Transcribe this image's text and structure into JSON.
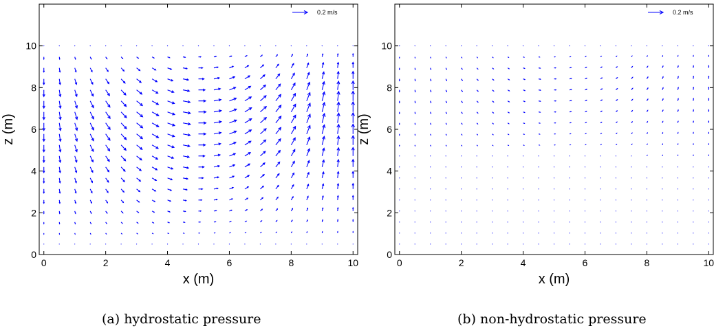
{
  "chart_data": [
    {
      "type": "quiver",
      "caption": "(a) hydrostatic pressure",
      "xlabel": "x (m)",
      "ylabel": "z (m)",
      "xlim": [
        -0.15,
        10.15
      ],
      "ylim": [
        0,
        12
      ],
      "xticks": [
        "0",
        "2",
        "4",
        "6",
        "8",
        "10"
      ],
      "yticks": [
        "0",
        "2",
        "4",
        "6",
        "8",
        "10"
      ],
      "reference_arrow": {
        "label": "0.2 m/s",
        "magnitude": 0.2,
        "position": "top-right"
      },
      "vector_color": "#0000ff",
      "field": {
        "nx": 21,
        "nz": 19,
        "x_range": [
          0,
          10
        ],
        "z_range": [
          0.5,
          10
        ],
        "max_speed": 0.27,
        "surface_speed_hint": 0.24,
        "decay_depth_m": 6.0,
        "pattern": "wind-driven circulation cell: downwelling at left wall, eastward surface flow, upwelling at right wall, westward return flow near bottom"
      }
    },
    {
      "type": "quiver",
      "caption": "(b) non-hydrostatic pressure",
      "xlabel": "x (m)",
      "ylabel": "z (m)",
      "xlim": [
        -0.15,
        10.15
      ],
      "ylim": [
        0,
        12
      ],
      "xticks": [
        "0",
        "2",
        "4",
        "6",
        "8",
        "10"
      ],
      "yticks": [
        "0",
        "2",
        "4",
        "6",
        "8",
        "10"
      ],
      "reference_arrow": {
        "label": "0.2 m/s",
        "magnitude": 0.2,
        "position": "top-right"
      },
      "vector_color": "#0000ff",
      "field": {
        "nx": 21,
        "nz": 19,
        "x_range": [
          0,
          10
        ],
        "z_range": [
          0.5,
          10
        ],
        "max_speed": 0.14,
        "surface_speed_hint": 0.14,
        "decay_depth_m": 2.2,
        "pattern": "same circulation cell confined near the surface; velocities nearly zero below z = 4 m"
      }
    }
  ]
}
